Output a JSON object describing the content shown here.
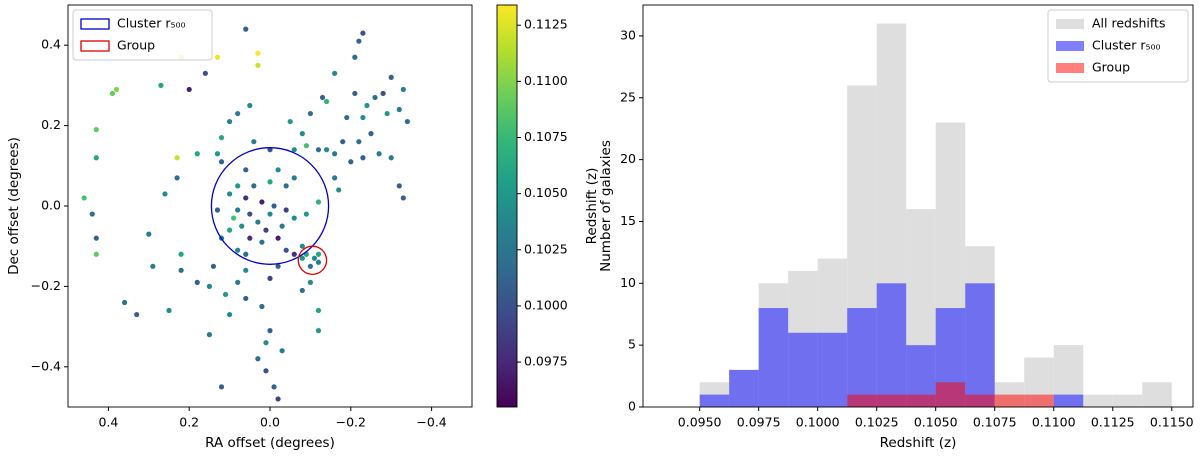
{
  "chart_data": [
    {
      "type": "scatter",
      "xlabel": "RA offset (degrees)",
      "ylabel": "Dec offset (degrees)",
      "xlim": [
        0.5,
        -0.5
      ],
      "ylim": [
        -0.5,
        0.5
      ],
      "xticks": [
        0.4,
        0.2,
        {
          "value": 0,
          "label": "0.0"
        },
        {
          "value": -0.2,
          "label": "−0.2"
        },
        {
          "value": -0.4,
          "label": "−0.4"
        }
      ],
      "yticks": [
        {
          "value": -0.4,
          "label": "−0.4"
        },
        {
          "value": -0.2,
          "label": "−0.2"
        },
        {
          "value": 0,
          "label": "0.0"
        },
        0.2,
        0.4
      ],
      "colormap": "viridis",
      "colorbar": {
        "label": "Redshift (z)",
        "lim": [
          0.0955,
          0.1134
        ],
        "ticks": [
          0.0975,
          {
            "value": 0.1,
            "label": "0.1000"
          },
          0.1025,
          {
            "value": 0.105,
            "label": "0.1050"
          },
          0.1075,
          {
            "value": 0.11,
            "label": "0.1100"
          },
          0.1125
        ]
      },
      "legend": "upper left",
      "circles": [
        {
          "name": "Cluster r₅₀₀",
          "color": "#0000cc",
          "x": 0,
          "y": 0,
          "r": 0.145
        },
        {
          "name": "Group",
          "color": "#dd0000",
          "x": -0.105,
          "y": -0.135,
          "r": 0.035
        }
      ],
      "points": {
        "x": [
          0.06,
          0.13,
          0.03,
          0.03,
          -0.23,
          -0.22,
          -0.21,
          0.22,
          0.16,
          -0.16,
          -0.3,
          -0.33,
          0.38,
          0.39,
          0.2,
          0.27,
          -0.21,
          -0.24,
          -0.26,
          -0.28,
          -0.29,
          -0.32,
          -0.34,
          -0.13,
          -0.14,
          -0.19,
          -0.23,
          -0.25,
          0.43,
          0.43,
          0.05,
          0.08,
          0.1,
          -0.05,
          -0.08,
          -0.1,
          -0.18,
          -0.22,
          -0.23,
          -0.3,
          -0.12,
          -0.14,
          -0.16,
          0.12,
          0.18,
          0.12,
          0.23,
          -0.06,
          -0.09,
          0.04,
          0.13,
          0.23,
          -0.2,
          -0.27,
          -0.16,
          -0.17,
          -0.32,
          -0.33,
          0.46,
          0.44,
          0.26,
          0.0,
          0.06,
          -0.02,
          -0.06,
          0.08,
          0.04,
          0.0,
          -0.04,
          0.1,
          0.06,
          0.02,
          -0.01,
          0.08,
          0.05,
          0.0,
          -0.04,
          0.09,
          0.07,
          0.03,
          0.01,
          -0.03,
          0.1,
          0.05,
          0.02,
          -0.02,
          0.12,
          -0.06,
          -0.09,
          -0.12,
          0.08,
          0.06,
          -0.08,
          -0.04,
          0.13,
          -0.09,
          -0.11,
          -0.12,
          -0.12,
          -0.1,
          -0.08,
          -0.06,
          -0.02,
          0.3,
          0.22,
          0.43,
          0.43,
          0.14,
          0.06,
          0.0,
          0.29,
          0.22,
          0.18,
          0.15,
          0.08,
          -0.1,
          0.36,
          0.33,
          0.25,
          0.11,
          0.06,
          -0.08,
          0.02,
          -0.12,
          -0.12,
          0.1,
          0.15,
          0.0,
          0.01,
          0.03,
          0.01,
          -0.01,
          0.12,
          -0.02,
          -0.03
        ],
        "y": [
          0.44,
          0.37,
          0.38,
          0.35,
          0.43,
          0.41,
          0.37,
          0.37,
          0.33,
          0.33,
          0.32,
          0.29,
          0.29,
          0.28,
          0.29,
          0.3,
          0.28,
          0.25,
          0.27,
          0.28,
          0.23,
          0.24,
          0.21,
          0.27,
          0.26,
          0.22,
          0.22,
          0.18,
          0.19,
          0.12,
          0.25,
          0.23,
          0.21,
          0.21,
          0.18,
          0.23,
          0.16,
          0.16,
          0.12,
          0.12,
          0.14,
          0.14,
          0.13,
          0.17,
          0.13,
          0.11,
          0.12,
          0.14,
          0.15,
          0.16,
          0.13,
          0.07,
          0.11,
          0.13,
          0.07,
          0.04,
          0.05,
          0.02,
          0.02,
          -0.02,
          0.03,
          0.14,
          0.09,
          0.09,
          0.07,
          0.05,
          0.05,
          0.06,
          0.05,
          0.03,
          0.02,
          0.01,
          0.0,
          -0.01,
          -0.02,
          -0.02,
          -0.01,
          -0.03,
          -0.05,
          -0.04,
          -0.06,
          -0.05,
          -0.06,
          -0.08,
          -0.09,
          -0.08,
          -0.08,
          -0.03,
          -0.02,
          0.01,
          -0.11,
          -0.12,
          -0.1,
          -0.11,
          -0.01,
          -0.12,
          -0.13,
          -0.12,
          -0.14,
          -0.15,
          -0.13,
          -0.12,
          -0.15,
          -0.07,
          -0.12,
          -0.08,
          -0.12,
          -0.15,
          -0.16,
          -0.18,
          -0.15,
          -0.16,
          -0.19,
          -0.2,
          -0.19,
          -0.19,
          -0.24,
          -0.27,
          -0.26,
          -0.22,
          -0.23,
          -0.21,
          -0.25,
          -0.26,
          -0.31,
          -0.27,
          -0.32,
          -0.31,
          -0.34,
          -0.38,
          -0.41,
          -0.45,
          -0.45,
          -0.48,
          -0.36
        ],
        "z": [
          0.101,
          0.113,
          0.114,
          0.112,
          0.1,
          0.101,
          0.102,
          0.111,
          0.1,
          0.104,
          0.101,
          0.103,
          0.11,
          0.109,
          0.097,
          0.106,
          0.101,
          0.105,
          0.102,
          0.1,
          0.105,
          0.103,
          0.102,
          0.101,
          0.107,
          0.102,
          0.104,
          0.101,
          0.109,
          0.106,
          0.104,
          0.103,
          0.103,
          0.105,
          0.104,
          0.102,
          0.101,
          0.102,
          0.101,
          0.103,
          0.102,
          0.104,
          0.103,
          0.106,
          0.106,
          0.101,
          0.112,
          0.104,
          0.108,
          0.103,
          0.105,
          0.102,
          0.101,
          0.103,
          0.103,
          0.104,
          0.101,
          0.101,
          0.108,
          0.102,
          0.104,
          0.1,
          0.101,
          0.104,
          0.103,
          0.105,
          0.102,
          0.106,
          0.102,
          0.104,
          0.098,
          0.097,
          0.101,
          0.103,
          0.1,
          0.104,
          0.099,
          0.108,
          0.104,
          0.103,
          0.099,
          0.103,
          0.106,
          0.098,
          0.102,
          0.097,
          0.103,
          0.104,
          0.105,
          0.107,
          0.104,
          0.102,
          0.104,
          0.1,
          0.101,
          0.106,
          0.104,
          0.106,
          0.103,
          0.102,
          0.105,
          0.098,
          0.101,
          0.103,
          0.106,
          0.101,
          0.109,
          0.101,
          0.104,
          0.099,
          0.103,
          0.102,
          0.101,
          0.104,
          0.103,
          0.104,
          0.102,
          0.101,
          0.104,
          0.105,
          0.101,
          0.102,
          0.102,
          0.106,
          0.105,
          0.104,
          0.103,
          0.101,
          0.104,
          0.102,
          0.1,
          0.101,
          0.101,
          0.099,
          0.103
        ]
      }
    },
    {
      "type": "histogram",
      "xlabel": "Redshift (z)",
      "ylabel": "Number of galaxies",
      "xlim": [
        0.0926,
        0.1159
      ],
      "ylim": [
        0,
        32.5
      ],
      "xticks": [
        {
          "value": 0.095,
          "label": "0.0950"
        },
        0.0975,
        {
          "value": 0.1,
          "label": "0.1000"
        },
        0.1025,
        {
          "value": 0.105,
          "label": "0.1050"
        },
        0.1075,
        {
          "value": 0.11,
          "label": "0.1100"
        },
        0.1125,
        {
          "value": 0.115,
          "label": "0.1150"
        }
      ],
      "yticks": [
        0,
        5,
        10,
        15,
        20,
        25,
        30
      ],
      "legend": "upper right",
      "bins": [
        0.095,
        0.09625,
        0.0975,
        0.09875,
        0.1,
        0.10125,
        0.1025,
        0.10375,
        0.105,
        0.10625,
        0.1075,
        0.10875,
        0.11,
        0.11125,
        0.1125,
        0.11375,
        0.115
      ],
      "series": [
        {
          "name": "All redshifts",
          "color": "#d3d3d3",
          "alpha": 0.75,
          "values": [
            2,
            3,
            10,
            11,
            12,
            26,
            31,
            16,
            23,
            13,
            2,
            4,
            5,
            1,
            1,
            2
          ]
        },
        {
          "name": "Cluster r₅₀₀",
          "color": "#0000ff",
          "alpha": 0.5,
          "values": [
            1,
            3,
            8,
            6,
            6,
            8,
            10,
            5,
            8,
            10,
            0,
            0,
            1,
            0,
            0,
            0
          ]
        },
        {
          "name": "Group",
          "color": "#ff0000",
          "alpha": 0.5,
          "values": [
            0,
            0,
            0,
            0,
            0,
            1,
            1,
            1,
            2,
            1,
            1,
            1,
            0,
            0,
            0,
            0
          ]
        }
      ]
    }
  ]
}
